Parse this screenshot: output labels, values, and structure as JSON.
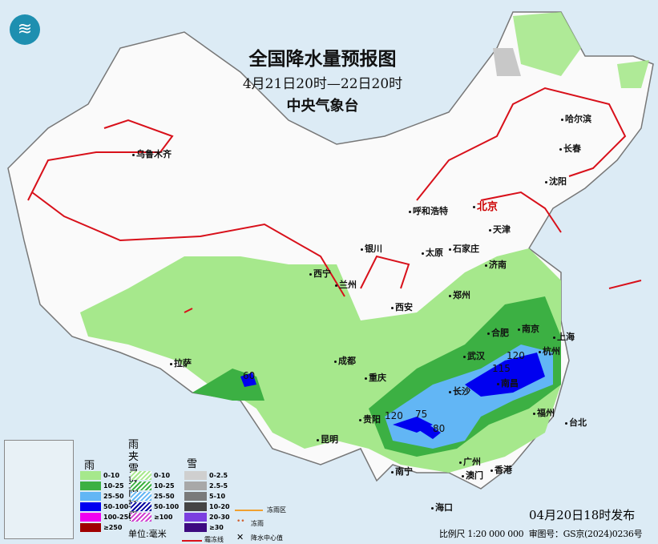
{
  "title": "全国降水量预报图",
  "period": "4月21日20时—22日20时",
  "agency": "中央气象台",
  "cities": [
    {
      "name": "哈尔滨"
    },
    {
      "name": "长春"
    },
    {
      "name": "沈阳"
    },
    {
      "name": "乌鲁木齐"
    },
    {
      "name": "呼和浩特"
    },
    {
      "name": "北京"
    },
    {
      "name": "天津"
    },
    {
      "name": "石家庄"
    },
    {
      "name": "太原"
    },
    {
      "name": "银川"
    },
    {
      "name": "济南"
    },
    {
      "name": "西宁"
    },
    {
      "name": "兰州"
    },
    {
      "name": "郑州"
    },
    {
      "name": "西安"
    },
    {
      "name": "合肥"
    },
    {
      "name": "南京"
    },
    {
      "name": "上海"
    },
    {
      "name": "杭州"
    },
    {
      "name": "武汉"
    },
    {
      "name": "成都"
    },
    {
      "name": "重庆"
    },
    {
      "name": "长沙"
    },
    {
      "name": "南昌"
    },
    {
      "name": "拉萨"
    },
    {
      "name": "贵阳"
    },
    {
      "name": "福州"
    },
    {
      "name": "台北"
    },
    {
      "name": "昆明"
    },
    {
      "name": "广州"
    },
    {
      "name": "澳门"
    },
    {
      "name": "香港"
    },
    {
      "name": "南宁"
    },
    {
      "name": "海口"
    }
  ],
  "centers": [
    "60",
    "120",
    "75",
    "80",
    "115",
    "120"
  ],
  "legend": {
    "rain_title": "雨",
    "rain": [
      {
        "label": "0-10",
        "color": "#a6e88c"
      },
      {
        "label": "10-25",
        "color": "#3cb043"
      },
      {
        "label": "25-50",
        "color": "#62b6f5"
      },
      {
        "label": "50-100",
        "color": "#0000f0"
      },
      {
        "label": "100-250",
        "color": "#f000f0"
      },
      {
        "label": "≥250",
        "color": "#a00000"
      }
    ],
    "mix_title": "雨夹雪\n或雨转雪",
    "mix": [
      {
        "label": "0-10",
        "color": "#a6e88c"
      },
      {
        "label": "10-25",
        "color": "#3cb043"
      },
      {
        "label": "25-50",
        "color": "#62b6f5"
      },
      {
        "label": "50-100",
        "color": "#0000a0"
      },
      {
        "label": "≥100",
        "color": "#d040d0"
      }
    ],
    "snow_title": "雪",
    "snow": [
      {
        "label": "0-2.5",
        "color": "#cfcfcf"
      },
      {
        "label": "2.5-5",
        "color": "#a8a8a8"
      },
      {
        "label": "5-10",
        "color": "#7a7a7a"
      },
      {
        "label": "10-20",
        "color": "#444444"
      },
      {
        "label": "20-30",
        "color": "#7b3fe0"
      },
      {
        "label": "≥30",
        "color": "#3d0a80"
      }
    ],
    "unit": "单位:毫米",
    "freezing_zone": "冻雨区",
    "freezing_rain": "冻雨",
    "frost_line": "霜冻线",
    "center_value": "降水中心值"
  },
  "issued": "04月20日18时发布",
  "scale": "比例尺 1:20 000 000",
  "approval": "审图号：GS京(2024)0236号"
}
